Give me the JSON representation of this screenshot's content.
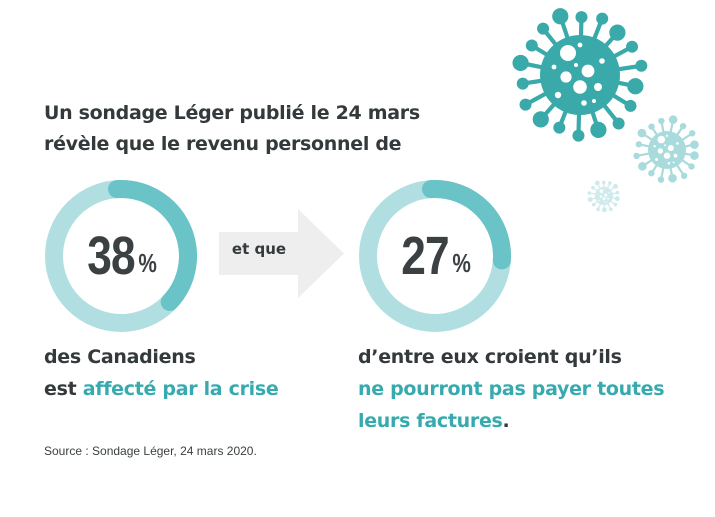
{
  "headline": {
    "line1": "Un sondage Léger publié le 24 mars",
    "line2": "révèle que le revenu personnel de"
  },
  "stats": [
    {
      "value": 38,
      "number_label": "38",
      "unit": "%"
    },
    {
      "value": 27,
      "number_label": "27",
      "unit": "%"
    }
  ],
  "connector": {
    "label": "et que"
  },
  "captions": {
    "left": {
      "line1": "des Canadiens",
      "line2_prefix": "est ",
      "line2_highlight": "affecté par la crise"
    },
    "right": {
      "line1": "d’entre eux croient qu’ils",
      "line2_highlight": "ne pourront pas payer toutes",
      "line3_highlight": "leurs factures",
      "line3_suffix": "."
    }
  },
  "source": "Source : Sondage Léger, 24 mars 2020.",
  "colors": {
    "text_dark": "#343a3c",
    "accent_teal": "#36aaae",
    "ring_light": "#b1dfe1",
    "ring_dark": "#6ac3c6",
    "arrow_gray": "#eeeeee",
    "virus_large": "#3aa9aa",
    "virus_medium": "#a9dbdc",
    "virus_small": "#cdebec"
  },
  "icons": [
    "virus-icon-large",
    "virus-icon-medium",
    "virus-icon-small",
    "arrow-right-icon"
  ]
}
